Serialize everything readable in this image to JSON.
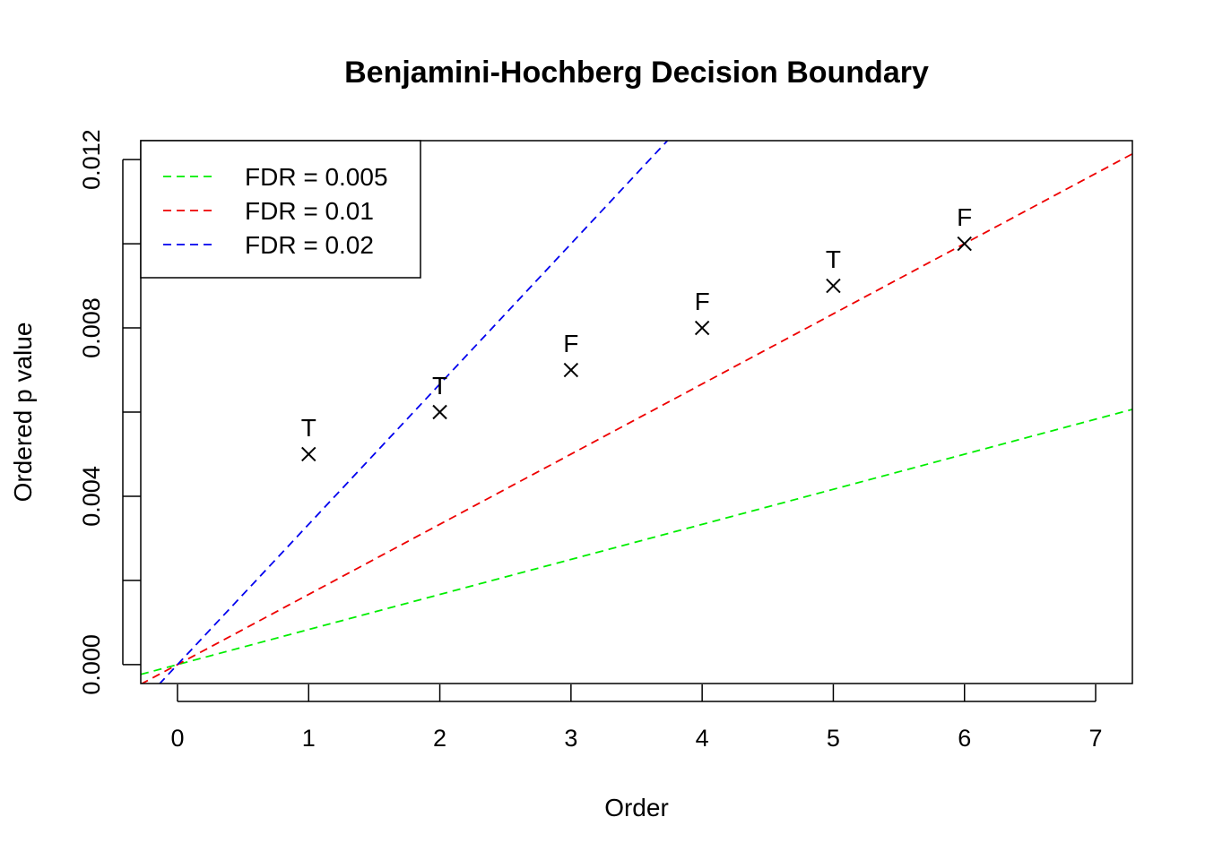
{
  "chart_data": {
    "type": "scatter",
    "title": "Benjamini-Hochberg Decision Boundary",
    "xlabel": "Order",
    "ylabel": "Ordered p value",
    "xlim": [
      -0.28,
      7.28
    ],
    "ylim": [
      -0.00045,
      0.01245
    ],
    "x_ticks": [
      0,
      1,
      2,
      3,
      4,
      5,
      6,
      7
    ],
    "x_tick_labels": [
      "0",
      "1",
      "2",
      "3",
      "4",
      "5",
      "6",
      "7"
    ],
    "y_ticks": [
      0,
      0.002,
      0.004,
      0.006,
      0.008,
      0.01,
      0.012
    ],
    "y_tick_labels": [
      "0.000",
      "",
      "0.004",
      "",
      "0.008",
      "",
      "0.012"
    ],
    "points": {
      "x": [
        1,
        2,
        3,
        4,
        5,
        6
      ],
      "y": [
        0.005,
        0.006,
        0.007,
        0.008,
        0.009,
        0.01
      ],
      "labels": [
        "T",
        "T",
        "F",
        "F",
        "T",
        "F"
      ],
      "marker": "x"
    },
    "lines": [
      {
        "name": "FDR = 0.005",
        "slope": 0.000833,
        "intercept": 0,
        "color": "#00ee00",
        "style": "dashed"
      },
      {
        "name": "FDR = 0.01",
        "slope": 0.001667,
        "intercept": 0,
        "color": "#ee0000",
        "style": "dashed"
      },
      {
        "name": "FDR = 0.02",
        "slope": 0.003333,
        "intercept": 0,
        "color": "#0000ee",
        "style": "dashed"
      }
    ],
    "legend_position": "top-left",
    "grid": false
  }
}
